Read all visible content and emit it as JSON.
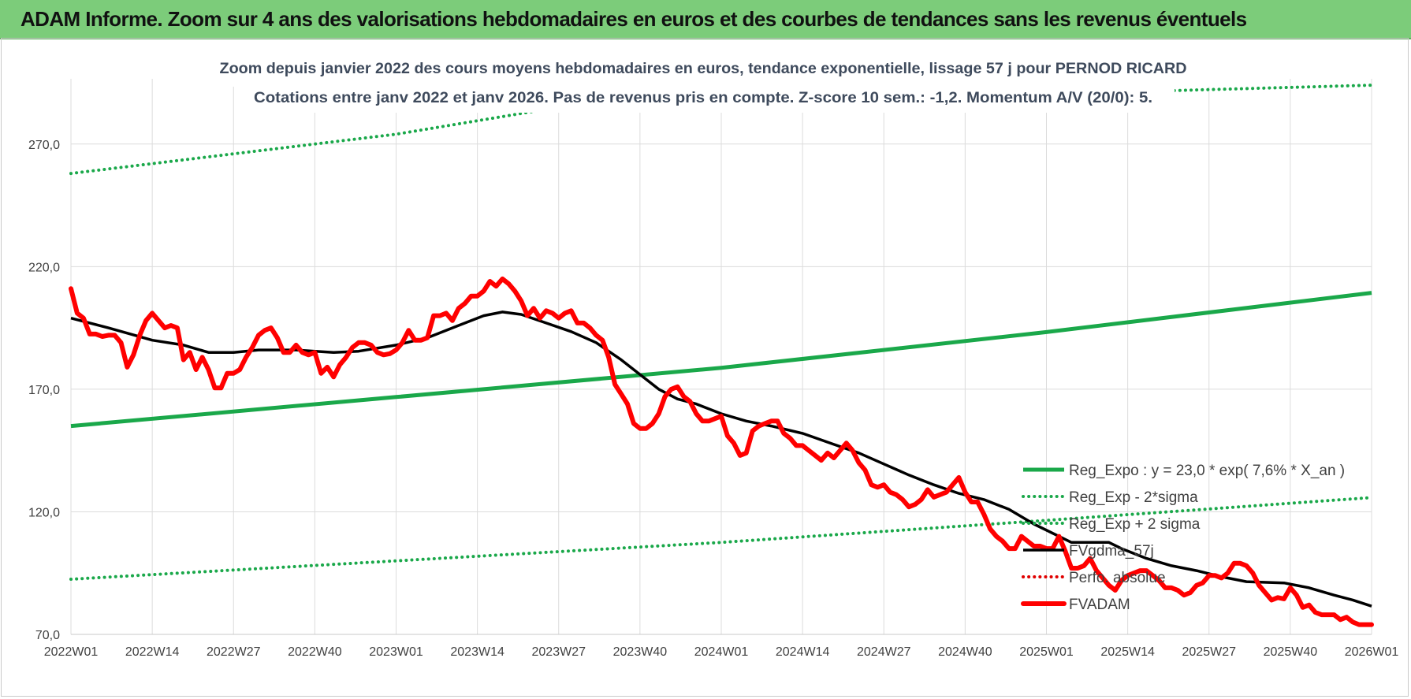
{
  "header": {
    "title": "ADAM Informe. Zoom sur 4 ans des valorisations hebdomadaires en euros et des courbes de tendances sans les revenus éventuels"
  },
  "chart_data": {
    "type": "line",
    "title": "Zoom depuis janvier 2022 des cours moyens hebdomadaires en euros, tendance exponentielle, lissage 57 j pour PERNOD RICARD",
    "subtitle": "Cotations entre janv 2022 et janv 2026. Pas de revenus pris en compte. Z-score 10 sem.: -1,2. Momentum A/V (20/0): 5.",
    "xlabel": "",
    "ylabel": "",
    "ylim": [
      70,
      295
    ],
    "yticks": [
      "70,0",
      "120,0",
      "170,0",
      "220,0",
      "270,0"
    ],
    "ytick_values": [
      70,
      120,
      170,
      220,
      270
    ],
    "xticks": [
      "2022W01",
      "2022W14",
      "2022W27",
      "2022W40",
      "2023W01",
      "2023W14",
      "2023W27",
      "2023W40",
      "2024W01",
      "2024W14",
      "2024W27",
      "2024W40",
      "2025W01",
      "2025W14",
      "2025W27",
      "2025W40",
      "2026W01"
    ],
    "x_range_weeks": [
      0,
      208
    ],
    "grid": "vertical and horizontal",
    "legend_position": "right, lower half",
    "series": [
      {
        "name": "Reg_Expo : y = 23,0 * exp( 7,6% *  X_an )",
        "color": "#1aa84a",
        "style": "solid-thick",
        "points": [
          [
            0,
            155
          ],
          [
            52,
            166.8
          ],
          [
            104,
            178.7
          ],
          [
            156,
            193.3
          ],
          [
            208,
            209.3
          ]
        ]
      },
      {
        "name": "Reg_Exp - 2*sigma",
        "color": "#1aa84a",
        "style": "dotted",
        "points": [
          [
            0,
            92.5
          ],
          [
            52,
            100
          ],
          [
            104,
            107.5
          ],
          [
            156,
            116.5
          ],
          [
            208,
            125.8
          ]
        ]
      },
      {
        "name": "Reg_Exp + 2 sigma",
        "color": "#1aa84a",
        "style": "dotted",
        "points": [
          [
            0,
            258
          ],
          [
            52,
            274
          ],
          [
            78,
            285
          ],
          [
            208,
            294
          ]
        ]
      },
      {
        "name": "FVgdma_57j",
        "color": "#000000",
        "style": "solid",
        "points": [
          [
            0,
            199
          ],
          [
            6,
            195
          ],
          [
            13,
            190
          ],
          [
            18,
            188
          ],
          [
            22,
            185
          ],
          [
            26,
            185
          ],
          [
            30,
            186
          ],
          [
            36,
            186
          ],
          [
            42,
            185
          ],
          [
            46,
            185.5
          ],
          [
            52,
            188
          ],
          [
            57,
            191
          ],
          [
            62,
            196
          ],
          [
            66,
            200
          ],
          [
            69,
            201.5
          ],
          [
            72,
            200.5
          ],
          [
            76,
            197
          ],
          [
            80,
            193.5
          ],
          [
            84,
            189
          ],
          [
            88,
            182
          ],
          [
            91,
            176
          ],
          [
            94,
            170
          ],
          [
            97,
            166
          ],
          [
            100,
            164
          ],
          [
            104,
            160
          ],
          [
            108,
            157
          ],
          [
            112,
            155
          ],
          [
            117,
            152
          ],
          [
            122,
            147.5
          ],
          [
            126,
            144
          ],
          [
            130,
            139.5
          ],
          [
            134,
            135
          ],
          [
            138,
            131
          ],
          [
            142,
            127.5
          ],
          [
            146,
            125
          ],
          [
            150,
            121
          ],
          [
            154,
            115
          ],
          [
            158,
            110
          ],
          [
            160,
            107.5
          ],
          [
            166,
            107.5
          ],
          [
            168,
            105
          ],
          [
            172,
            101
          ],
          [
            176,
            98
          ],
          [
            180,
            96
          ],
          [
            184,
            93.5
          ],
          [
            188,
            91.5
          ],
          [
            194,
            91
          ],
          [
            198,
            89
          ],
          [
            202,
            86
          ],
          [
            205,
            84
          ],
          [
            208,
            81.5
          ]
        ]
      },
      {
        "name": "Perfo. absolue",
        "color": "#e00000",
        "style": "dotted",
        "points": []
      },
      {
        "name": "FVADAM",
        "color": "#ff0000",
        "style": "solid-thick",
        "points": [
          [
            0,
            211
          ],
          [
            1,
            201
          ],
          [
            2,
            199
          ],
          [
            3,
            192.5
          ],
          [
            4,
            192.5
          ],
          [
            5,
            191.5
          ],
          [
            6,
            192
          ],
          [
            7,
            192
          ],
          [
            8,
            189
          ],
          [
            9,
            179
          ],
          [
            10,
            184
          ],
          [
            11,
            192
          ],
          [
            12,
            198
          ],
          [
            13,
            201
          ],
          [
            14,
            198
          ],
          [
            15,
            195
          ],
          [
            16,
            196
          ],
          [
            17,
            195
          ],
          [
            18,
            182
          ],
          [
            19,
            185
          ],
          [
            20,
            178
          ],
          [
            21,
            183
          ],
          [
            22,
            178
          ],
          [
            23,
            170.5
          ],
          [
            24,
            170.5
          ],
          [
            25,
            176.5
          ],
          [
            26,
            176.5
          ],
          [
            27,
            178
          ],
          [
            28,
            183
          ],
          [
            29,
            187
          ],
          [
            30,
            192
          ],
          [
            31,
            194
          ],
          [
            32,
            195
          ],
          [
            33,
            191
          ],
          [
            34,
            185
          ],
          [
            35,
            185
          ],
          [
            36,
            188
          ],
          [
            37,
            185
          ],
          [
            38,
            184
          ],
          [
            39,
            185
          ],
          [
            40,
            176.5
          ],
          [
            41,
            179
          ],
          [
            42,
            175
          ],
          [
            43,
            180
          ],
          [
            44,
            183
          ],
          [
            45,
            187
          ],
          [
            46,
            189
          ],
          [
            47,
            189
          ],
          [
            48,
            188
          ],
          [
            49,
            185
          ],
          [
            50,
            184
          ],
          [
            51,
            184.5
          ],
          [
            52,
            186
          ],
          [
            53,
            189
          ],
          [
            54,
            194
          ],
          [
            55,
            190
          ],
          [
            56,
            190
          ],
          [
            57,
            191
          ],
          [
            58,
            200
          ],
          [
            59,
            200
          ],
          [
            60,
            201
          ],
          [
            61,
            198
          ],
          [
            62,
            203
          ],
          [
            63,
            205
          ],
          [
            64,
            208
          ],
          [
            65,
            208
          ],
          [
            66,
            210
          ],
          [
            67,
            214
          ],
          [
            68,
            212
          ],
          [
            69,
            215
          ],
          [
            70,
            213
          ],
          [
            71,
            210
          ],
          [
            72,
            206
          ],
          [
            73,
            200
          ],
          [
            74,
            203
          ],
          [
            75,
            199
          ],
          [
            76,
            202
          ],
          [
            77,
            201
          ],
          [
            78,
            199
          ],
          [
            79,
            201
          ],
          [
            80,
            202
          ],
          [
            81,
            197
          ],
          [
            82,
            197
          ],
          [
            83,
            195
          ],
          [
            84,
            192
          ],
          [
            85,
            190
          ],
          [
            86,
            183
          ],
          [
            87,
            172
          ],
          [
            88,
            168
          ],
          [
            89,
            164
          ],
          [
            90,
            156
          ],
          [
            91,
            154
          ],
          [
            92,
            154
          ],
          [
            93,
            156
          ],
          [
            94,
            160
          ],
          [
            95,
            167
          ],
          [
            96,
            170
          ],
          [
            97,
            171
          ],
          [
            98,
            167
          ],
          [
            99,
            165
          ],
          [
            100,
            160
          ],
          [
            101,
            157
          ],
          [
            102,
            157
          ],
          [
            103,
            158
          ],
          [
            104,
            159
          ],
          [
            105,
            151
          ],
          [
            106,
            148
          ],
          [
            107,
            143
          ],
          [
            108,
            144
          ],
          [
            109,
            153
          ],
          [
            110,
            155
          ],
          [
            111,
            156
          ],
          [
            112,
            157
          ],
          [
            113,
            157
          ],
          [
            114,
            152
          ],
          [
            115,
            150
          ],
          [
            116,
            147
          ],
          [
            117,
            147
          ],
          [
            118,
            145
          ],
          [
            119,
            143
          ],
          [
            120,
            141
          ],
          [
            121,
            144
          ],
          [
            122,
            142
          ],
          [
            123,
            145
          ],
          [
            124,
            148
          ],
          [
            125,
            145
          ],
          [
            126,
            140
          ],
          [
            127,
            137
          ],
          [
            128,
            131
          ],
          [
            129,
            130
          ],
          [
            130,
            131
          ],
          [
            131,
            128
          ],
          [
            132,
            127
          ],
          [
            133,
            125
          ],
          [
            134,
            122
          ],
          [
            135,
            123
          ],
          [
            136,
            125
          ],
          [
            137,
            129
          ],
          [
            138,
            126
          ],
          [
            139,
            127
          ],
          [
            140,
            128
          ],
          [
            141,
            131
          ],
          [
            142,
            134
          ],
          [
            143,
            128
          ],
          [
            144,
            124
          ],
          [
            145,
            124
          ],
          [
            146,
            119
          ],
          [
            147,
            113
          ],
          [
            148,
            110
          ],
          [
            149,
            108
          ],
          [
            150,
            105
          ],
          [
            151,
            105
          ],
          [
            152,
            110
          ],
          [
            153,
            108
          ],
          [
            154,
            106
          ],
          [
            155,
            106
          ],
          [
            156,
            105
          ],
          [
            157,
            105
          ],
          [
            158,
            110
          ],
          [
            159,
            104
          ],
          [
            160,
            97
          ],
          [
            161,
            97
          ],
          [
            162,
            98
          ],
          [
            163,
            101
          ],
          [
            164,
            96
          ],
          [
            165,
            93
          ],
          [
            166,
            90
          ],
          [
            167,
            88
          ],
          [
            168,
            92
          ],
          [
            169,
            94
          ],
          [
            170,
            95
          ],
          [
            171,
            96
          ],
          [
            172,
            96
          ],
          [
            173,
            94
          ],
          [
            174,
            92
          ],
          [
            175,
            89
          ],
          [
            176,
            89
          ],
          [
            177,
            88
          ],
          [
            178,
            86
          ],
          [
            179,
            87
          ],
          [
            180,
            90
          ],
          [
            181,
            91
          ],
          [
            182,
            94
          ],
          [
            183,
            94
          ],
          [
            184,
            93
          ],
          [
            185,
            95
          ],
          [
            186,
            99
          ],
          [
            187,
            99
          ],
          [
            188,
            98
          ],
          [
            189,
            95
          ],
          [
            190,
            90
          ],
          [
            191,
            87
          ],
          [
            192,
            84
          ],
          [
            193,
            85
          ],
          [
            194,
            84.5
          ],
          [
            195,
            89
          ],
          [
            196,
            86
          ],
          [
            197,
            81
          ],
          [
            198,
            82
          ],
          [
            199,
            79
          ],
          [
            200,
            78
          ],
          [
            201,
            78
          ],
          [
            202,
            78
          ],
          [
            203,
            76
          ],
          [
            204,
            77
          ],
          [
            205,
            75
          ],
          [
            206,
            74
          ],
          [
            207,
            74
          ],
          [
            208,
            74
          ]
        ]
      }
    ]
  }
}
